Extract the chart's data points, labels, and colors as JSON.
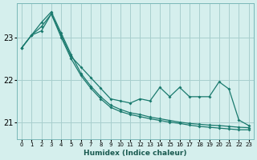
{
  "bg_color": "#d5efed",
  "grid_color": "#a8cece",
  "line_color": "#1a7a6e",
  "xlabel": "Humidex (Indice chaleur)",
  "xlim": [
    -0.5,
    23.5
  ],
  "ylim": [
    20.6,
    23.8
  ],
  "yticks": [
    21,
    22,
    23
  ],
  "xticks": [
    0,
    1,
    2,
    3,
    4,
    5,
    6,
    7,
    8,
    9,
    10,
    11,
    12,
    13,
    14,
    15,
    16,
    17,
    18,
    19,
    20,
    21,
    22,
    23
  ],
  "line1_x": [
    0,
    1,
    2,
    3,
    4,
    5,
    6,
    7,
    8,
    9,
    10,
    11,
    12,
    13,
    14,
    15,
    16,
    17,
    18,
    19,
    20,
    21,
    22,
    23
  ],
  "line1_y": [
    22.75,
    23.05,
    23.15,
    23.55,
    23.05,
    22.55,
    22.3,
    22.05,
    21.8,
    21.55,
    21.5,
    21.45,
    21.55,
    21.5,
    21.82,
    21.6,
    21.82,
    21.6,
    21.6,
    21.6,
    21.95,
    21.78,
    21.05,
    20.92
  ],
  "line2_x": [
    0,
    1,
    2,
    3,
    4,
    5,
    6,
    7,
    8,
    9,
    10,
    11,
    12,
    13,
    14,
    15,
    16,
    17,
    18,
    19,
    20,
    21,
    22,
    23
  ],
  "line2_y": [
    22.75,
    23.05,
    23.35,
    23.6,
    23.1,
    22.6,
    22.15,
    21.85,
    21.6,
    21.4,
    21.3,
    21.22,
    21.18,
    21.12,
    21.08,
    21.04,
    21.0,
    20.97,
    20.95,
    20.93,
    20.92,
    20.9,
    20.88,
    20.87
  ],
  "line3_x": [
    0,
    1,
    2,
    3,
    4,
    5,
    6,
    7,
    8,
    9,
    10,
    11,
    12,
    13,
    14,
    15,
    16,
    17,
    18,
    19,
    20,
    21,
    22,
    23
  ],
  "line3_y": [
    22.75,
    23.05,
    23.25,
    23.55,
    23.0,
    22.5,
    22.1,
    21.8,
    21.55,
    21.35,
    21.25,
    21.18,
    21.13,
    21.08,
    21.04,
    21.0,
    20.97,
    20.93,
    20.9,
    20.88,
    20.86,
    20.84,
    20.82,
    20.82
  ]
}
